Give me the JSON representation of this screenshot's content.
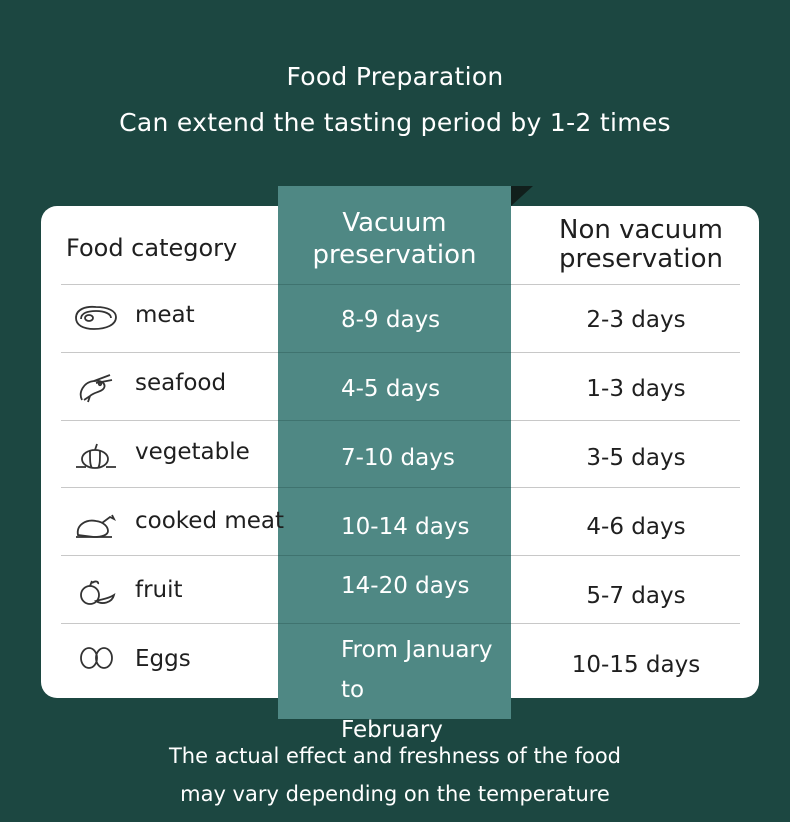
{
  "header": {
    "title": "Food Preparation",
    "subtitle": "Can extend the tasting period by 1-2 times"
  },
  "table": {
    "columns": {
      "category": "Food category",
      "vacuum": [
        "Vacuum",
        "preservation"
      ],
      "non_vacuum": [
        "Non vacuum",
        "preservation"
      ]
    },
    "rows": [
      {
        "icon": "meat-icon",
        "category": "meat",
        "vacuum": "8-9 days",
        "non_vacuum": "2-3 days"
      },
      {
        "icon": "shrimp-icon",
        "category": "seafood",
        "vacuum": "4-5 days",
        "non_vacuum": "1-3 days"
      },
      {
        "icon": "vegetable-icon",
        "category": "vegetable",
        "vacuum": "7-10 days",
        "non_vacuum": "3-5 days"
      },
      {
        "icon": "roast-chicken-icon",
        "category": "cooked meat",
        "vacuum": "10-14 days",
        "non_vacuum": "4-6 days"
      },
      {
        "icon": "fruit-icon",
        "category": "fruit",
        "vacuum": "14-20 days",
        "non_vacuum": "5-7 days"
      },
      {
        "icon": "eggs-icon",
        "category": "Eggs",
        "vacuum": [
          "From January to",
          "February"
        ],
        "non_vacuum": "10-15 days"
      }
    ]
  },
  "footer": {
    "line1": "The actual effect and freshness of the food",
    "line2": "may vary depending on the temperature"
  },
  "colors": {
    "background": "#1c4741",
    "highlight_column": "#4f8884",
    "card": "#ffffff"
  }
}
